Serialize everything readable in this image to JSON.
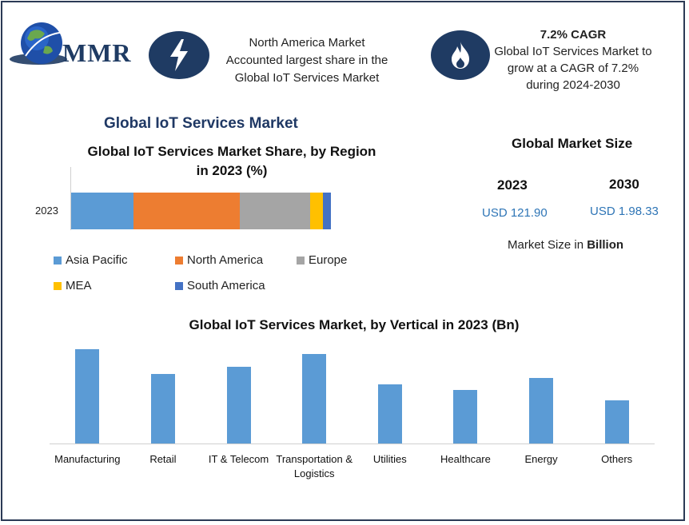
{
  "brand": {
    "logo_text": "MMR"
  },
  "callout_left": {
    "icon": "lightning-bolt-icon",
    "line1": "North America Market",
    "line2": "Accounted largest share in the",
    "line3": "Global IoT Services Market"
  },
  "callout_right": {
    "icon": "flame-icon",
    "heading": "7.2% CAGR",
    "line1": "Global IoT Services Market to",
    "line2": "grow at a CAGR of 7.2%",
    "line3": "during 2024-2030"
  },
  "main_title": "Global IoT Services Market",
  "market_size": {
    "title": "Global Market Size",
    "year_1": "2023",
    "year_2": "2030",
    "value_1": "USD 121.90",
    "value_2": "USD 1.98.33",
    "note_prefix": "Market Size in ",
    "note_bold": "Billion"
  },
  "colors": {
    "brand_dark": "#1f3b63",
    "asia_pacific": "#5b9bd5",
    "north_america": "#ed7d31",
    "europe": "#a5a5a5",
    "mea": "#ffc000",
    "south_america": "#4472c4",
    "vertical_bar": "#5b9bd5",
    "usd_value": "#2e75b6"
  },
  "chart_data": [
    {
      "type": "bar",
      "orientation": "horizontal",
      "stacked": true,
      "title_line1": "Global IoT Services Market Share, by Region",
      "title_line2": "in 2023 (%)",
      "categories": [
        "2023"
      ],
      "series": [
        {
          "name": "Asia Pacific",
          "values": [
            24
          ]
        },
        {
          "name": "North America",
          "values": [
            41
          ]
        },
        {
          "name": "Europe",
          "values": [
            27
          ]
        },
        {
          "name": "MEA",
          "values": [
            5
          ]
        },
        {
          "name": "South America",
          "values": [
            3
          ]
        }
      ],
      "legend_position": "bottom",
      "grid": false
    },
    {
      "type": "bar",
      "title": "Global IoT Services Market, by Vertical in 2023 (Bn)",
      "categories": [
        "Manufacturing",
        "Retail",
        "IT & Telecom",
        "Transportation & Logistics",
        "Utilities",
        "Healthcare",
        "Energy",
        "Others"
      ],
      "values": [
        113,
        84,
        92,
        108,
        71,
        65,
        79,
        52
      ],
      "ylim": [
        0,
        120
      ],
      "grid": false,
      "axis_values_shown": false
    }
  ]
}
